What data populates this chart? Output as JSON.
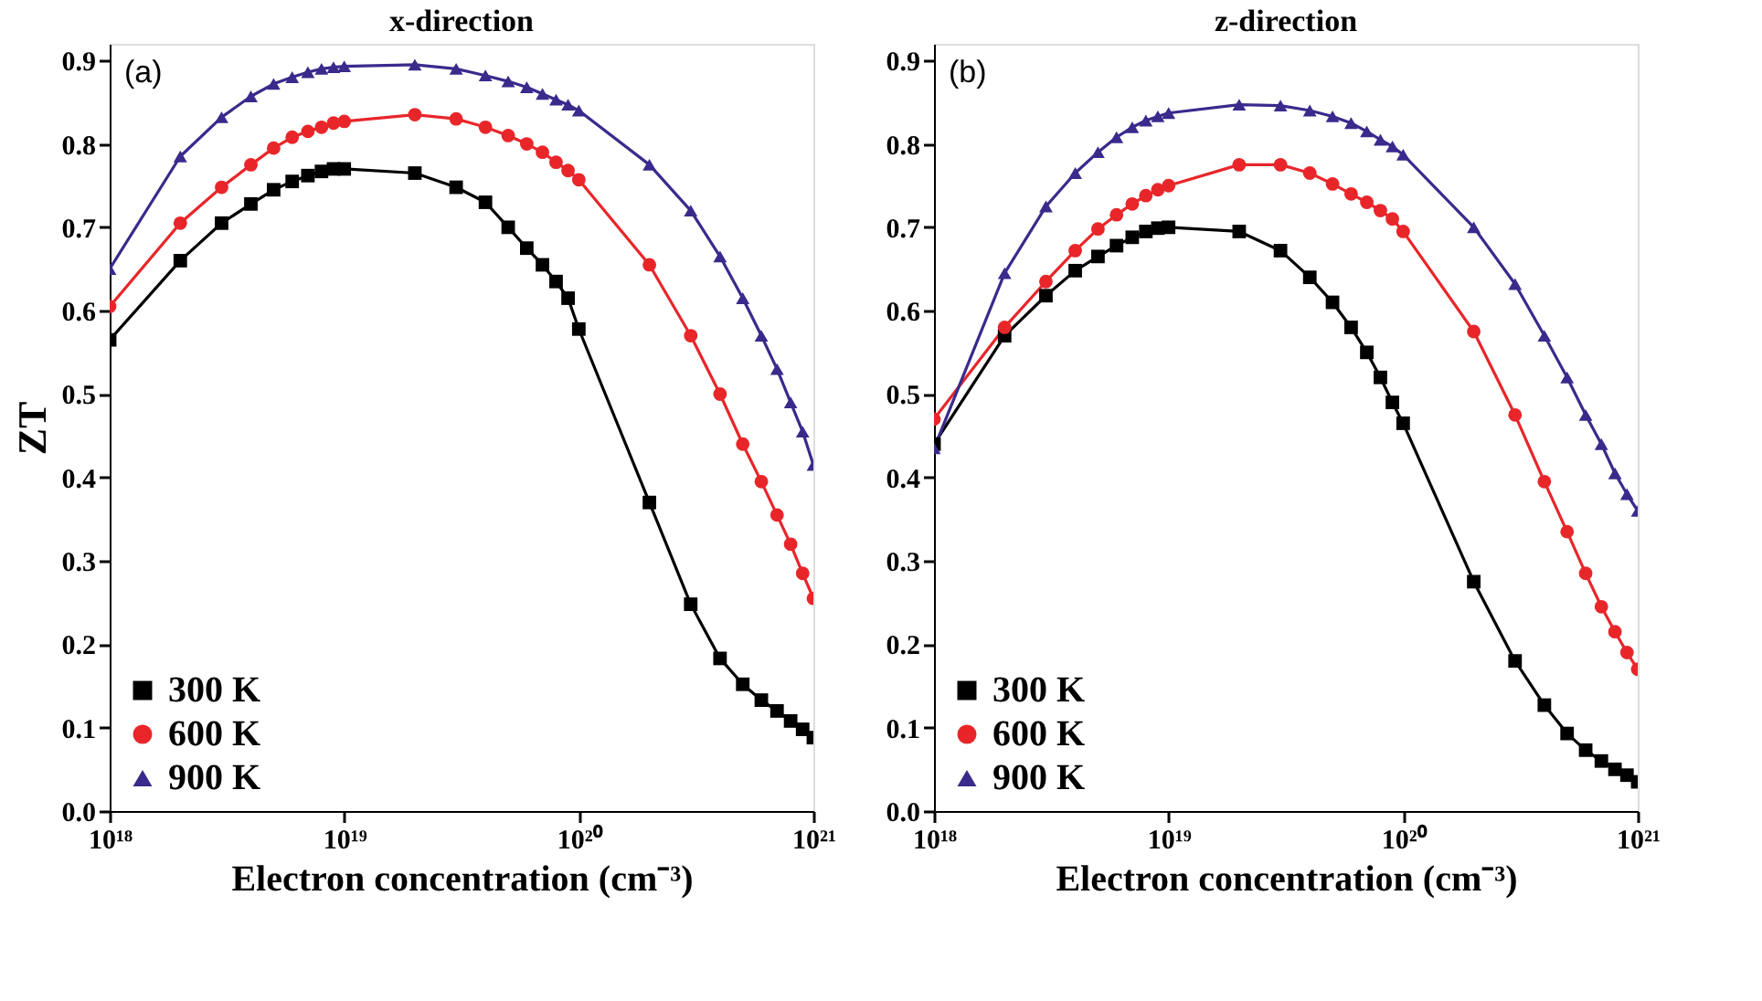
{
  "chart_data": [
    {
      "type": "line",
      "title": "x-direction",
      "xlabel": "Electron concentration (cm⁻³)",
      "ylabel": "ZT",
      "log": "x",
      "annotations": [
        "(a)"
      ],
      "legend": "bottom left",
      "grid": false,
      "x": [
        1e+18,
        2e+18,
        3e+18,
        4e+18,
        5e+18,
        6e+18,
        7e+18,
        8e+18,
        9e+18,
        1e+19,
        2e+19,
        3e+19,
        4e+19,
        5e+19,
        6e+19,
        7e+19,
        8e+19,
        9e+19,
        1e+20,
        2e+20,
        3e+20,
        4e+20,
        5e+20,
        6e+20,
        7e+20,
        8e+20,
        9e+20,
        1e+21
      ],
      "xlim": [
        1e+18,
        1e+21
      ],
      "xticks": [
        {
          "value": 1e+18,
          "label": "10¹⁸"
        },
        {
          "value": 1e+19,
          "label": "10¹⁹"
        },
        {
          "value": 1e+20,
          "label": "10²⁰"
        },
        {
          "value": 1e+21,
          "label": "10²¹"
        }
      ],
      "ylim": [
        0,
        0.92
      ],
      "yticks": [
        {
          "value": 0,
          "label": "0.0"
        },
        0.1,
        0.2,
        0.3,
        0.4,
        0.5,
        0.6,
        0.7,
        0.8,
        0.9
      ],
      "series": [
        {
          "name": "300 K",
          "color": "#000000",
          "marker": "square",
          "values": [
            0.565,
            0.66,
            0.705,
            0.728,
            0.745,
            0.755,
            0.762,
            0.767,
            0.77,
            0.77,
            0.765,
            0.748,
            0.73,
            0.7,
            0.675,
            0.655,
            0.635,
            0.615,
            0.578,
            0.37,
            0.248,
            0.183,
            0.152,
            0.133,
            0.12,
            0.108,
            0.098,
            0.088
          ]
        },
        {
          "name": "600 K",
          "color": "#e8262a",
          "marker": "circle",
          "values": [
            0.605,
            0.705,
            0.748,
            0.775,
            0.795,
            0.808,
            0.815,
            0.82,
            0.825,
            0.827,
            0.835,
            0.83,
            0.82,
            0.81,
            0.8,
            0.79,
            0.778,
            0.768,
            0.757,
            0.655,
            0.57,
            0.5,
            0.44,
            0.395,
            0.355,
            0.32,
            0.285,
            0.255
          ]
        },
        {
          "name": "900 K",
          "color": "#3a2a8c",
          "marker": "triangle",
          "values": [
            0.65,
            0.785,
            0.832,
            0.857,
            0.872,
            0.88,
            0.886,
            0.89,
            0.892,
            0.893,
            0.895,
            0.89,
            0.882,
            0.875,
            0.868,
            0.86,
            0.853,
            0.847,
            0.84,
            0.775,
            0.72,
            0.665,
            0.615,
            0.57,
            0.53,
            0.49,
            0.455,
            0.415
          ]
        }
      ]
    },
    {
      "type": "line",
      "title": "z-direction",
      "xlabel": "Electron concentration (cm⁻³)",
      "log": "x",
      "annotations": [
        "(b)"
      ],
      "legend": "bottom left",
      "grid": false,
      "x": [
        1e+18,
        2e+18,
        3e+18,
        4e+18,
        5e+18,
        6e+18,
        7e+18,
        8e+18,
        9e+18,
        1e+19,
        2e+19,
        3e+19,
        4e+19,
        5e+19,
        6e+19,
        7e+19,
        8e+19,
        9e+19,
        1e+20,
        2e+20,
        3e+20,
        4e+20,
        5e+20,
        6e+20,
        7e+20,
        8e+20,
        9e+20,
        1e+21
      ],
      "xlim": [
        1e+18,
        1e+21
      ],
      "xticks": [
        {
          "value": 1e+18,
          "label": "10¹⁸"
        },
        {
          "value": 1e+19,
          "label": "10¹⁹"
        },
        {
          "value": 1e+20,
          "label": "10²⁰"
        },
        {
          "value": 1e+21,
          "label": "10²¹"
        }
      ],
      "ylim": [
        0,
        0.92
      ],
      "yticks": [
        {
          "value": 0,
          "label": "0.0"
        },
        0.1,
        0.2,
        0.3,
        0.4,
        0.5,
        0.6,
        0.7,
        0.8,
        0.9
      ],
      "series": [
        {
          "name": "300 K",
          "color": "#000000",
          "marker": "square",
          "values": [
            0.44,
            0.57,
            0.618,
            0.648,
            0.665,
            0.678,
            0.688,
            0.695,
            0.699,
            0.7,
            0.695,
            0.672,
            0.64,
            0.61,
            0.58,
            0.55,
            0.52,
            0.49,
            0.465,
            0.275,
            0.18,
            0.127,
            0.093,
            0.073,
            0.06,
            0.05,
            0.043,
            0.035
          ]
        },
        {
          "name": "600 K",
          "color": "#e8262a",
          "marker": "circle",
          "values": [
            0.47,
            0.58,
            0.635,
            0.672,
            0.698,
            0.715,
            0.728,
            0.738,
            0.745,
            0.75,
            0.775,
            0.775,
            0.765,
            0.752,
            0.74,
            0.73,
            0.72,
            0.71,
            0.695,
            0.575,
            0.475,
            0.395,
            0.335,
            0.285,
            0.245,
            0.215,
            0.19,
            0.17
          ]
        },
        {
          "name": "900 K",
          "color": "#3a2a8c",
          "marker": "triangle",
          "values": [
            0.435,
            0.645,
            0.725,
            0.765,
            0.79,
            0.808,
            0.82,
            0.828,
            0.833,
            0.837,
            0.847,
            0.846,
            0.84,
            0.833,
            0.825,
            0.815,
            0.805,
            0.797,
            0.787,
            0.7,
            0.632,
            0.57,
            0.52,
            0.475,
            0.44,
            0.405,
            0.38,
            0.36
          ]
        }
      ]
    }
  ]
}
